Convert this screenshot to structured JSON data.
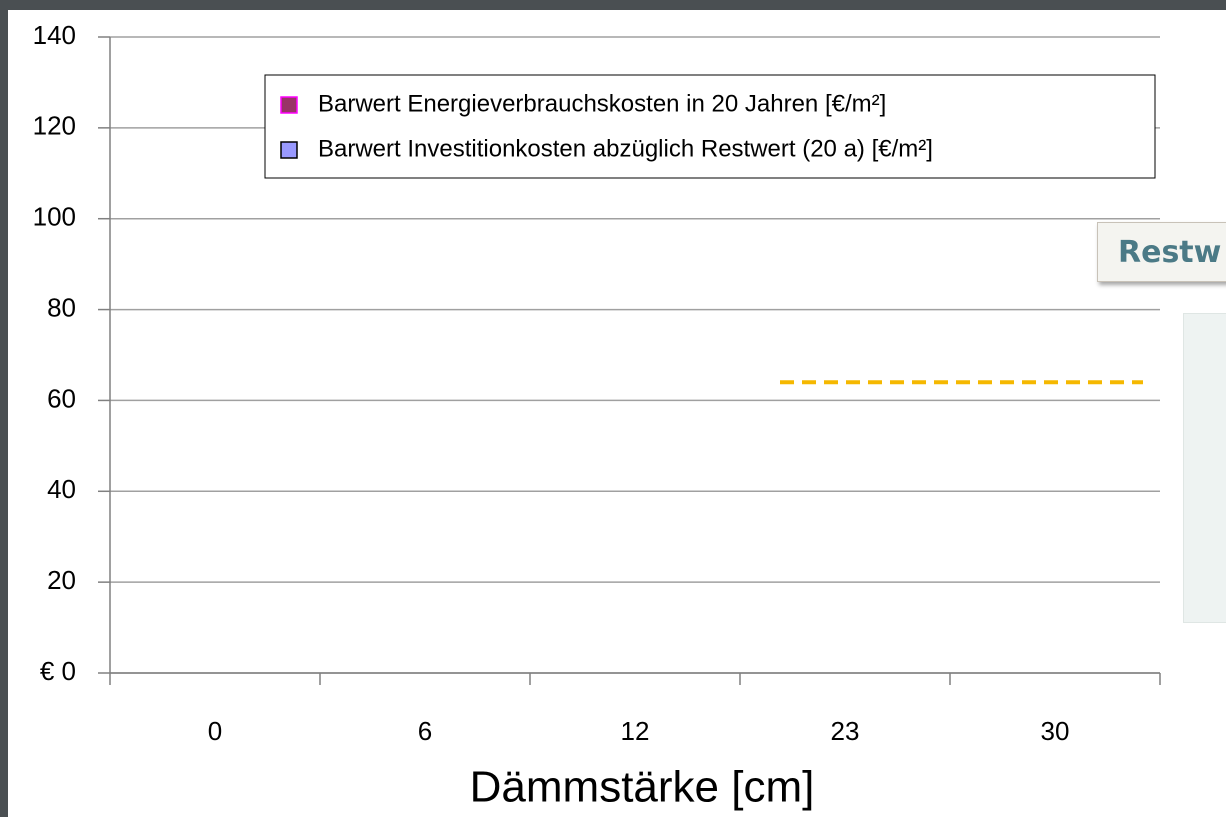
{
  "chart_data": {
    "type": "bar",
    "x_label": "Dämmstärke [cm]",
    "categories": [
      "0",
      "6",
      "12",
      "23",
      "30"
    ],
    "series": [
      {
        "name": "Barwert Energieverbrauchskosten in 20 Jahren [€/m²]",
        "color": "#993366",
        "values": [
          null,
          null,
          null,
          null,
          null
        ]
      },
      {
        "name": "Barwert Investitionkosten abzüglich Restwert (20 a) [€/m²]",
        "color": "#9999ff",
        "values": [
          null,
          null,
          null,
          null,
          null
        ]
      }
    ],
    "ylim": [
      0,
      140
    ],
    "yticks": [
      {
        "value": 0,
        "label": "€ 0"
      },
      20,
      40,
      60,
      80,
      100,
      120,
      140
    ],
    "grid": true,
    "reference_line": {
      "value": 64,
      "color": "#f5b800"
    },
    "annotation": "Restw"
  }
}
